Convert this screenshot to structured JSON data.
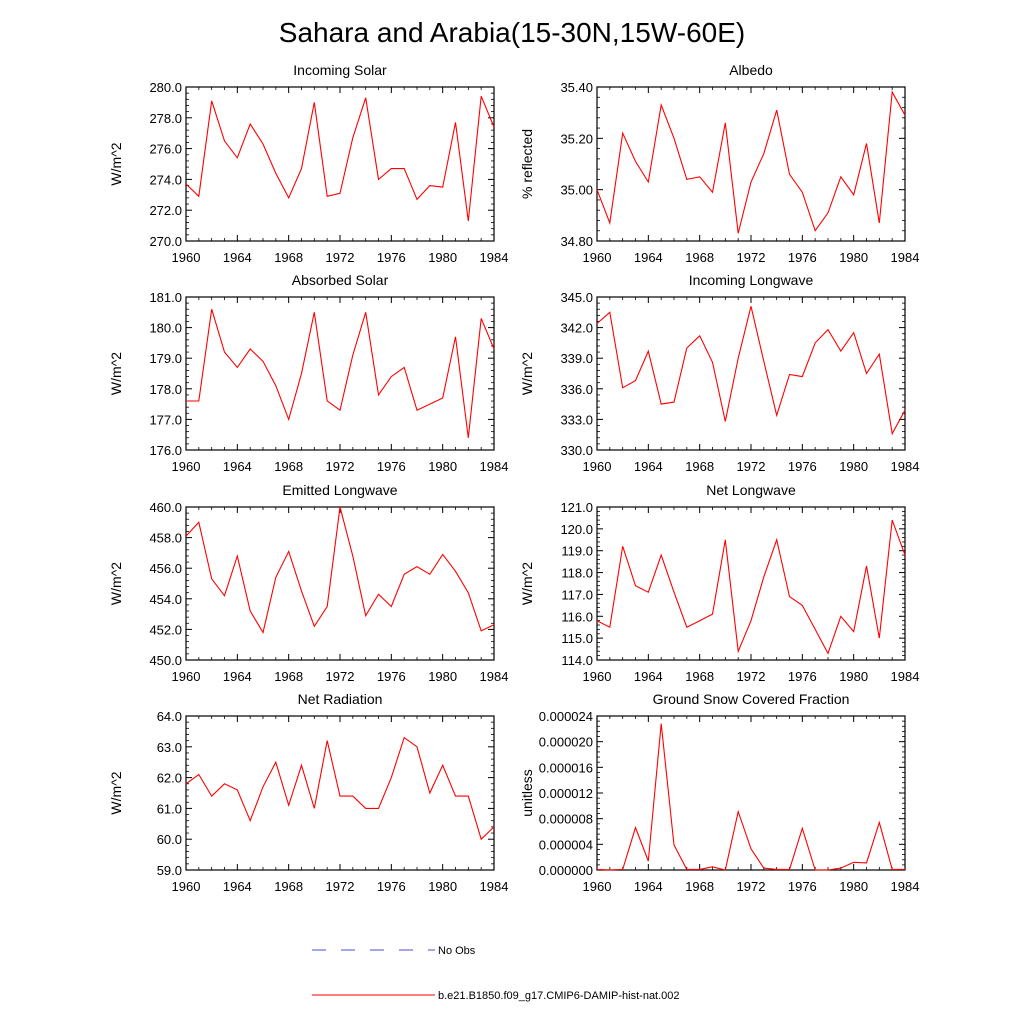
{
  "title": "Sahara and Arabia(15-30N,15W-60E)",
  "x": [
    1960,
    1961,
    1962,
    1963,
    1964,
    1965,
    1966,
    1967,
    1968,
    1969,
    1970,
    1971,
    1972,
    1973,
    1974,
    1975,
    1976,
    1977,
    1978,
    1979,
    1980,
    1981,
    1982,
    1983,
    1984
  ],
  "xticks": [
    1960,
    1964,
    1968,
    1972,
    1976,
    1980,
    1984
  ],
  "legend": [
    {
      "label": "No Obs",
      "color": "#4b4bdc",
      "style": "dashed"
    },
    {
      "label": "b.e21.B1850.f09_g17.CMIP6-DAMIP-hist-nat.002",
      "color": "#ff0000",
      "style": "solid"
    }
  ],
  "chart_data": [
    {
      "type": "line",
      "title": "Incoming Solar",
      "ylabel": "W/m^2",
      "ylim": [
        270,
        280
      ],
      "yticks": [
        "270.0",
        "272.0",
        "274.0",
        "276.0",
        "278.0",
        "280.0"
      ],
      "series": [
        {
          "values": [
            273.7,
            272.9,
            279.1,
            276.5,
            275.4,
            277.6,
            276.3,
            274.4,
            272.8,
            274.7,
            279.0,
            272.9,
            273.1,
            276.7,
            279.3,
            274.0,
            274.7,
            274.7,
            272.7,
            273.6,
            273.5,
            277.7,
            271.3,
            279.4,
            277.4
          ]
        }
      ]
    },
    {
      "type": "line",
      "title": "Albedo",
      "ylabel": "% reflected",
      "ylim": [
        34.8,
        35.4
      ],
      "yticks": [
        "34.80",
        "35.00",
        "35.20",
        "35.40"
      ],
      "series": [
        {
          "values": [
            35.0,
            34.87,
            35.22,
            35.11,
            35.03,
            35.33,
            35.2,
            35.04,
            35.05,
            34.99,
            35.26,
            34.83,
            35.03,
            35.14,
            35.31,
            35.06,
            34.99,
            34.84,
            34.91,
            35.05,
            34.98,
            35.18,
            34.87,
            35.38,
            35.29
          ]
        }
      ]
    },
    {
      "type": "line",
      "title": "Absorbed Solar",
      "ylabel": "W/m^2",
      "ylim": [
        176,
        181
      ],
      "yticks": [
        "176.0",
        "177.0",
        "178.0",
        "179.0",
        "180.0",
        "181.0"
      ],
      "series": [
        {
          "values": [
            177.6,
            177.6,
            180.6,
            179.2,
            178.7,
            179.3,
            178.9,
            178.1,
            177.0,
            178.5,
            180.5,
            177.6,
            177.3,
            179.1,
            180.5,
            177.8,
            178.4,
            178.7,
            177.3,
            177.5,
            177.7,
            179.7,
            176.4,
            180.3,
            179.3
          ]
        }
      ]
    },
    {
      "type": "line",
      "title": "Incoming Longwave",
      "ylabel": "W/m^2",
      "ylim": [
        330,
        345
      ],
      "yticks": [
        "330.0",
        "333.0",
        "336.0",
        "339.0",
        "342.0",
        "345.0"
      ],
      "series": [
        {
          "values": [
            342.4,
            343.5,
            336.1,
            336.8,
            339.7,
            334.5,
            334.7,
            340.0,
            341.2,
            338.6,
            332.8,
            339.0,
            344.1,
            338.7,
            333.4,
            337.4,
            337.2,
            340.5,
            341.8,
            339.7,
            341.5,
            337.5,
            339.4,
            331.6,
            333.9
          ]
        }
      ]
    },
    {
      "type": "line",
      "title": "Emitted Longwave",
      "ylabel": "W/m^2",
      "ylim": [
        450,
        460
      ],
      "yticks": [
        "450.0",
        "452.0",
        "454.0",
        "456.0",
        "458.0",
        "460.0"
      ],
      "series": [
        {
          "values": [
            458.1,
            459.0,
            455.3,
            454.2,
            456.8,
            453.2,
            451.8,
            455.4,
            457.1,
            454.5,
            452.2,
            453.5,
            460.0,
            456.8,
            452.9,
            454.3,
            453.5,
            455.6,
            456.1,
            455.6,
            456.9,
            455.8,
            454.4,
            451.9,
            452.3
          ]
        }
      ]
    },
    {
      "type": "line",
      "title": "Net Longwave",
      "ylabel": "W/m^2",
      "ylim": [
        114,
        121
      ],
      "yticks": [
        "114.0",
        "115.0",
        "116.0",
        "117.0",
        "118.0",
        "119.0",
        "120.0",
        "121.0"
      ],
      "series": [
        {
          "values": [
            115.8,
            115.5,
            119.2,
            117.4,
            117.1,
            118.8,
            117.1,
            115.5,
            115.8,
            116.1,
            119.5,
            114.4,
            115.8,
            117.8,
            119.5,
            116.9,
            116.5,
            115.4,
            114.3,
            116.0,
            115.3,
            118.3,
            115.0,
            120.4,
            118.8
          ]
        }
      ]
    },
    {
      "type": "line",
      "title": "Net Radiation",
      "ylabel": "W/m^2",
      "ylim": [
        59,
        64
      ],
      "yticks": [
        "59.0",
        "60.0",
        "61.0",
        "62.0",
        "63.0",
        "64.0"
      ],
      "series": [
        {
          "values": [
            61.8,
            62.1,
            61.4,
            61.8,
            61.6,
            60.6,
            61.7,
            62.5,
            61.1,
            62.4,
            61.0,
            63.2,
            61.4,
            61.4,
            61.0,
            61.0,
            62.0,
            63.3,
            63.0,
            61.5,
            62.4,
            61.4,
            61.4,
            60.0,
            60.4
          ]
        }
      ]
    },
    {
      "type": "line",
      "title": "Ground Snow Covered Fraction",
      "ylabel": "unitless",
      "ylim": [
        0,
        2.4e-05
      ],
      "yticks": [
        "0.000000",
        "0.000004",
        "0.000008",
        "0.000012",
        "0.000016",
        "0.000020",
        "0.000024"
      ],
      "series": [
        {
          "values": [
            1e-07,
            0.0,
            1e-07,
            6.6e-06,
            1.4e-06,
            2.28e-05,
            3.9e-06,
            1e-07,
            1e-07,
            5e-07,
            0.0,
            9.1e-06,
            3.3e-06,
            3e-07,
            1e-07,
            1e-07,
            6.5e-06,
            0.0,
            0.0,
            3e-07,
            1.2e-06,
            1.1e-06,
            7.4e-06,
            1e-07,
            1e-07
          ]
        }
      ]
    }
  ]
}
